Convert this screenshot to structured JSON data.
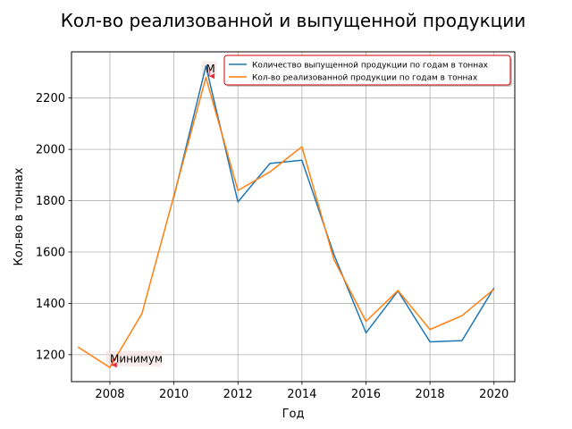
{
  "chart_data": {
    "type": "line",
    "title": "Кол-во реализованной и выпущенной продукции",
    "xlabel": "Год",
    "ylabel": "Кол-во в тоннах",
    "xlim": [
      2006.8,
      2020.65
    ],
    "ylim": [
      1095,
      2380
    ],
    "xticks": [
      2008,
      2010,
      2012,
      2014,
      2016,
      2018,
      2020
    ],
    "yticks": [
      1200,
      1400,
      1600,
      1800,
      2000,
      2200
    ],
    "grid": true,
    "legend_position": "top-right",
    "series": [
      {
        "name": "Количество выпущенной продукции по годам в тоннах",
        "color": "#1f77b4",
        "x": [
          2010,
          2011,
          2012,
          2013,
          2014,
          2015,
          2016,
          2017,
          2018,
          2019,
          2020
        ],
        "y": [
          1815,
          2325,
          1795,
          1945,
          1958,
          1590,
          1285,
          1448,
          1250,
          1255,
          1460
        ]
      },
      {
        "name": "Кол-во реализованной продукции по годам в тоннах",
        "color": "#ff7f0e",
        "x": [
          2007,
          2008,
          2009,
          2010,
          2011,
          2012,
          2013,
          2014,
          2015,
          2016,
          2017,
          2018,
          2019,
          2020
        ],
        "y": [
          1230,
          1150,
          1360,
          1820,
          2280,
          1840,
          1912,
          2010,
          1570,
          1330,
          1450,
          1298,
          1352,
          1455
        ]
      }
    ],
    "annotations": [
      {
        "text": "Минимум",
        "x": 2008.05,
        "y": 1160,
        "text_x": 2008.0,
        "text_y": 1170
      },
      {
        "text": "М",
        "x": 2011.1,
        "y": 2285,
        "text_x": 2011.0,
        "text_y": 2300
      }
    ]
  }
}
